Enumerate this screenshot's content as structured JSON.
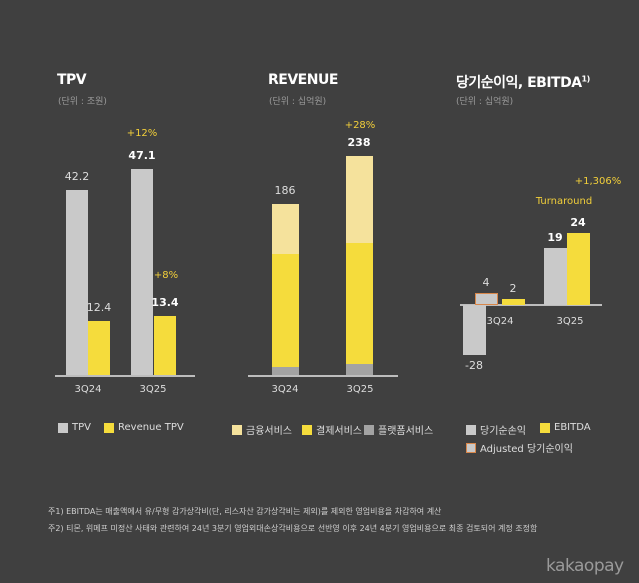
{
  "colors": {
    "gray": "#c9c9c9",
    "yellow": "#f5dc3c",
    "light_yellow": "#f5e29c",
    "dark_gray": "#a3a3a3",
    "orange": "#d9874a"
  },
  "chart_data": [
    {
      "type": "bar",
      "title": "TPV",
      "unit": "(단위 : 조원)",
      "categories": [
        "3Q24",
        "3Q25"
      ],
      "series": [
        {
          "name": "TPV",
          "values": [
            42.2,
            47.1
          ],
          "labels": [
            "42.2",
            "47.1"
          ]
        },
        {
          "name": "Revenue TPV",
          "values": [
            12.4,
            13.4
          ],
          "labels": [
            "12.4",
            "13.4"
          ]
        }
      ],
      "growth": {
        "tpv": "+12%",
        "revenue_tpv": "+8%"
      }
    },
    {
      "type": "bar",
      "stacked": true,
      "title": "REVENUE",
      "unit": "(단위 : 십억원)",
      "categories": [
        "3Q24",
        "3Q25"
      ],
      "totals": [
        186,
        238
      ],
      "total_labels": [
        "186",
        "238"
      ],
      "series": [
        {
          "name": "플랫폼서비스",
          "values": [
            9,
            12
          ]
        },
        {
          "name": "결제서비스",
          "values": [
            123,
            131
          ]
        },
        {
          "name": "금융서비스",
          "values": [
            54,
            95
          ]
        }
      ],
      "growth": "+28%"
    },
    {
      "type": "bar",
      "title": "당기순이익, EBITDA",
      "title_sup": "1)",
      "unit": "(단위 : 십억원)",
      "categories": [
        "3Q24",
        "3Q25"
      ],
      "series": [
        {
          "name": "당기순손익",
          "values": [
            -28,
            19
          ],
          "labels": [
            "-28",
            "19"
          ]
        },
        {
          "name": "Adjusted 당기순이익",
          "values": [
            4,
            null
          ],
          "labels": [
            "4",
            ""
          ]
        },
        {
          "name": "EBITDA",
          "values": [
            2,
            24
          ],
          "labels": [
            "2",
            "24"
          ]
        }
      ],
      "growth": "+1,306%",
      "annotation": "Turnaround"
    }
  ],
  "notes": [
    "주1) EBITDA는 매출액에서 유/무형 감가상각비(단, 리스자산 감가상각비는 제외)를 제외한 영업비용을 차감하여 계산",
    "주2) 티몬, 위메프 미정산 사태와 관련하여 24년 3분기 영업외대손상각비용으로 선반영 이후 24년 4분기 영업비용으로 최종 검토되어 계정 조정함"
  ],
  "logo": "kakaopay"
}
